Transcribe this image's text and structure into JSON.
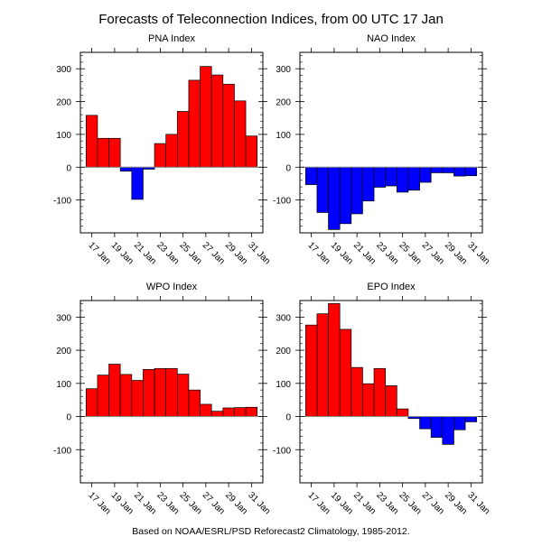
{
  "title": "Forecasts of Teleconnection Indices, from 00 UTC 17 Jan",
  "footer": "Based on NOAA/ESRL/PSD Reforecast2 Climatology, 1985-2012.",
  "colors": {
    "positive": "#ff0000",
    "negative": "#0000ff"
  },
  "chart_data": [
    {
      "type": "bar",
      "title": "PNA Index",
      "categories": [
        "17 Jan",
        "18 Jan",
        "19 Jan",
        "20 Jan",
        "21 Jan",
        "22 Jan",
        "23 Jan",
        "24 Jan",
        "25 Jan",
        "26 Jan",
        "27 Jan",
        "28 Jan",
        "29 Jan",
        "30 Jan",
        "31 Jan"
      ],
      "values": [
        158,
        88,
        88,
        -12,
        -98,
        -6,
        72,
        100,
        170,
        265,
        307,
        281,
        253,
        202,
        95
      ],
      "ylim": [
        -200,
        350
      ],
      "yticks": [
        -100,
        0,
        100,
        200,
        300
      ],
      "xticklabels": [
        "17 Jan",
        "19 Jan",
        "21 Jan",
        "23 Jan",
        "25 Jan",
        "27 Jan",
        "29 Jan",
        "31 Jan"
      ]
    },
    {
      "type": "bar",
      "title": "NAO Index",
      "categories": [
        "17 Jan",
        "18 Jan",
        "19 Jan",
        "20 Jan",
        "21 Jan",
        "22 Jan",
        "23 Jan",
        "24 Jan",
        "25 Jan",
        "26 Jan",
        "27 Jan",
        "28 Jan",
        "29 Jan",
        "30 Jan",
        "31 Jan"
      ],
      "values": [
        -53,
        -138,
        -190,
        -172,
        -142,
        -103,
        -61,
        -57,
        -76,
        -70,
        -46,
        -17,
        -17,
        -27,
        -26
      ],
      "ylim": [
        -200,
        350
      ],
      "yticks": [
        -100,
        0,
        100,
        200,
        300
      ],
      "xticklabels": [
        "17 Jan",
        "19 Jan",
        "21 Jan",
        "23 Jan",
        "25 Jan",
        "27 Jan",
        "29 Jan",
        "31 Jan"
      ]
    },
    {
      "type": "bar",
      "title": "WPO Index",
      "categories": [
        "17 Jan",
        "18 Jan",
        "19 Jan",
        "20 Jan",
        "21 Jan",
        "22 Jan",
        "23 Jan",
        "24 Jan",
        "25 Jan",
        "26 Jan",
        "27 Jan",
        "28 Jan",
        "29 Jan",
        "30 Jan",
        "31 Jan"
      ],
      "values": [
        84,
        125,
        158,
        127,
        109,
        142,
        145,
        145,
        128,
        80,
        37,
        16,
        26,
        27,
        28
      ],
      "ylim": [
        -200,
        350
      ],
      "yticks": [
        -100,
        0,
        100,
        200,
        300
      ],
      "xticklabels": [
        "17 Jan",
        "19 Jan",
        "21 Jan",
        "23 Jan",
        "25 Jan",
        "27 Jan",
        "29 Jan",
        "31 Jan"
      ]
    },
    {
      "type": "bar",
      "title": "EPO Index",
      "categories": [
        "17 Jan",
        "18 Jan",
        "19 Jan",
        "20 Jan",
        "21 Jan",
        "22 Jan",
        "23 Jan",
        "24 Jan",
        "25 Jan",
        "26 Jan",
        "27 Jan",
        "28 Jan",
        "29 Jan",
        "30 Jan",
        "31 Jan"
      ],
      "values": [
        276,
        310,
        341,
        263,
        148,
        99,
        145,
        93,
        23,
        -6,
        -37,
        -63,
        -84,
        -40,
        -16
      ],
      "ylim": [
        -200,
        350
      ],
      "yticks": [
        -100,
        0,
        100,
        200,
        300
      ],
      "xticklabels": [
        "17 Jan",
        "19 Jan",
        "21 Jan",
        "23 Jan",
        "25 Jan",
        "27 Jan",
        "29 Jan",
        "31 Jan"
      ]
    }
  ]
}
